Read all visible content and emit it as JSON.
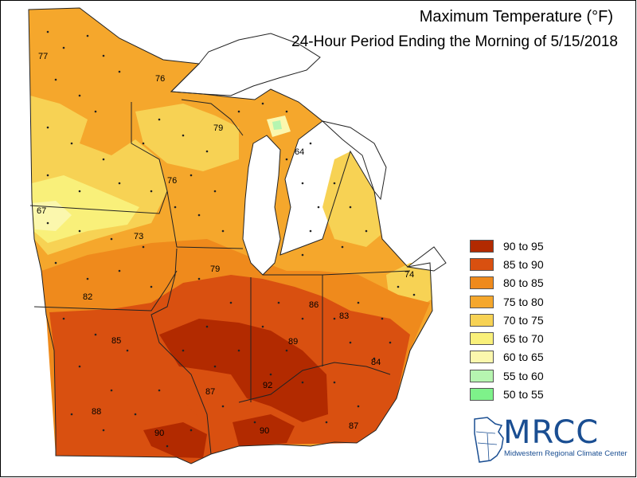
{
  "header": {
    "title": "Maximum Temperature (°F)",
    "subtitle": "24-Hour Period Ending the Morning of 5/15/2018"
  },
  "legend": [
    {
      "label": "90 to 95",
      "color": "#b22a00"
    },
    {
      "label": "85 to 90",
      "color": "#d95010"
    },
    {
      "label": "80 to 85",
      "color": "#ef8a1c"
    },
    {
      "label": "75 to 80",
      "color": "#f5a72c"
    },
    {
      "label": "70 to 75",
      "color": "#f7d254"
    },
    {
      "label": "65 to 70",
      "color": "#f9f07a"
    },
    {
      "label": "60 to 65",
      "color": "#fbf7ad"
    },
    {
      "label": "55 to 60",
      "color": "#b6f5b0"
    },
    {
      "label": "50 to 55",
      "color": "#7ef28a"
    }
  ],
  "station_labels": [
    "77",
    "76",
    "79",
    "64",
    "76",
    "67",
    "73",
    "79",
    "74",
    "82",
    "86",
    "83",
    "85",
    "89",
    "84",
    "87",
    "92",
    "88",
    "87",
    "90",
    "90"
  ],
  "logo": {
    "name": "MRCC",
    "subtitle": "Midwestern Regional Climate Center"
  },
  "colors": {
    "lake": "#ffffff",
    "boundary": "#222222",
    "dot": "#222222"
  }
}
